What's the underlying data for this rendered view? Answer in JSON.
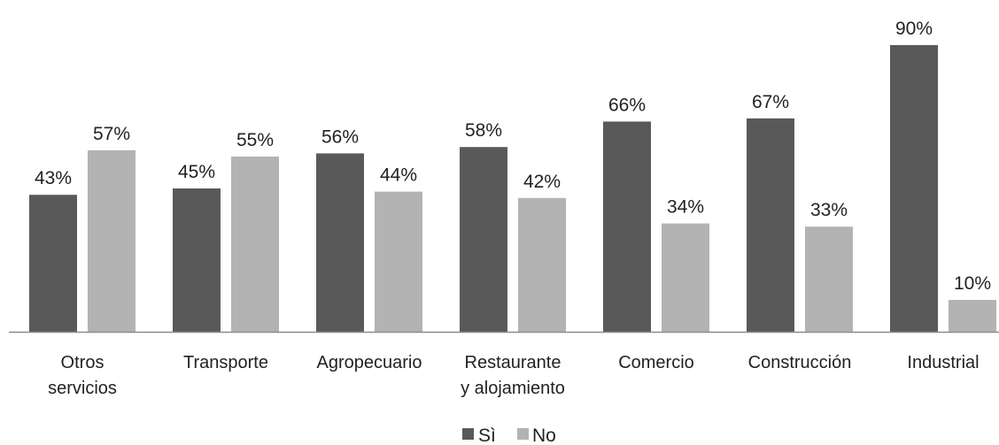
{
  "chart_data": {
    "type": "bar",
    "categories": [
      [
        "Otros",
        "servicios"
      ],
      [
        "Transporte"
      ],
      [
        "Agropecuario"
      ],
      [
        "Restaurante",
        "y alojamiento"
      ],
      [
        "Comercio"
      ],
      [
        "Construcción"
      ],
      [
        "Industrial"
      ]
    ],
    "series": [
      {
        "name": "Sì",
        "values": [
          43,
          45,
          56,
          58,
          66,
          67,
          90
        ],
        "labels": [
          "43%",
          "45%",
          "56%",
          "58%",
          "66%",
          "67%",
          "90%"
        ],
        "color": "#595959"
      },
      {
        "name": "No",
        "values": [
          57,
          55,
          44,
          42,
          34,
          33,
          10
        ],
        "labels": [
          "57%",
          "55%",
          "44%",
          "42%",
          "34%",
          "33%",
          "10%"
        ],
        "color": "#b3b3b3"
      }
    ],
    "title": "",
    "xlabel": "",
    "ylabel": "",
    "ylim": [
      0,
      100
    ],
    "grid": false,
    "legend": "bottom",
    "axis_color": "#8c8c8c"
  }
}
